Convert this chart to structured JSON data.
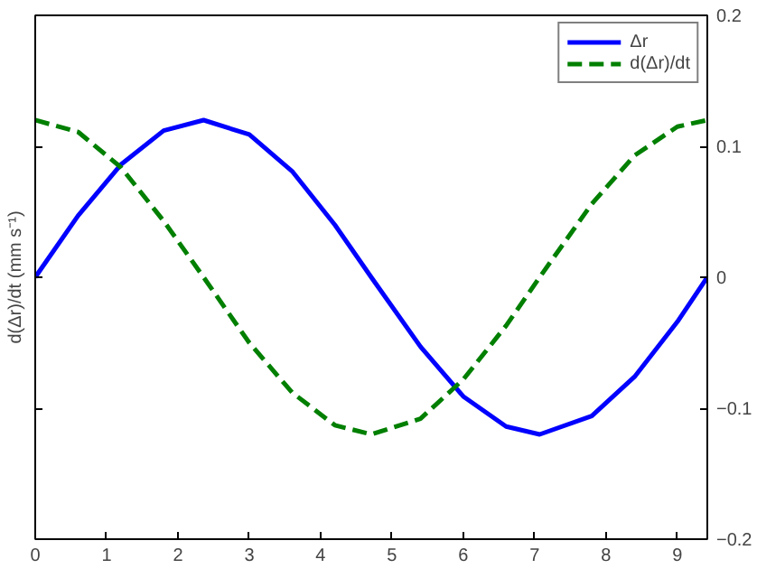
{
  "chart_data": {
    "type": "line",
    "ylabel": "d(Δr)/dt (mm s⁻¹)",
    "x": [
      0,
      0.6,
      1.2,
      1.8,
      2.36,
      3.0,
      3.6,
      4.2,
      4.71,
      5.4,
      6.0,
      6.6,
      7.07,
      7.8,
      8.4,
      9.0,
      9.42
    ],
    "series": [
      {
        "name": "Δr",
        "color": "#0000ff",
        "line_style": "solid",
        "values": [
          0,
          0.047,
          0.086,
          0.112,
          0.12,
          0.109,
          0.081,
          0.04,
          0,
          -0.053,
          -0.091,
          -0.114,
          -0.12,
          -0.106,
          -0.076,
          -0.034,
          0
        ]
      },
      {
        "name": "d(Δr)/dt",
        "color": "#007f00",
        "line_style": "dashed",
        "values": [
          0.12,
          0.111,
          0.084,
          0.043,
          0,
          -0.05,
          -0.088,
          -0.113,
          -0.12,
          -0.108,
          -0.078,
          -0.037,
          0,
          0.056,
          0.093,
          0.115,
          0.12
        ]
      }
    ],
    "xlim": [
      0,
      9.42
    ],
    "xticks": [
      0,
      1,
      2,
      3,
      4,
      5,
      6,
      7,
      8,
      9
    ],
    "ylim": [
      -0.2,
      0.2
    ],
    "yticks": [
      -0.2,
      -0.1,
      0,
      0.1,
      0.2
    ],
    "legend": "top right",
    "grid": false,
    "marker": "none"
  }
}
